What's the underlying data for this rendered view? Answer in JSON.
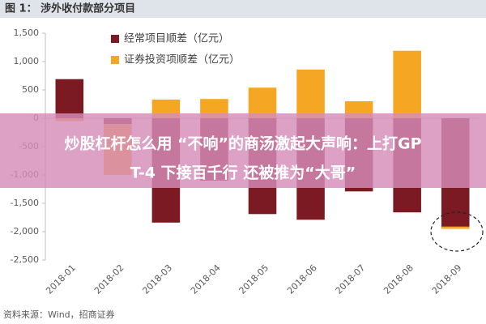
{
  "chart_data": {
    "type": "bar",
    "title": "图 1： 涉外收付款部分项目",
    "categories": [
      "2018-01",
      "2018-02",
      "2018-03",
      "2018-04",
      "2018-05",
      "2018-06",
      "2018-07",
      "2018-08",
      "2018-09"
    ],
    "series": [
      {
        "name": "证券投资项顺差（亿元）",
        "color": "#f5a623",
        "values": [
          -50,
          -1000,
          330,
          340,
          540,
          860,
          300,
          1190,
          -1950
        ]
      },
      {
        "name": "经常项目顺差（亿元）",
        "color": "#7b1a22",
        "values": [
          690,
          -100,
          -1840,
          -1100,
          -1690,
          -1790,
          -1290,
          -1660,
          -1910
        ]
      }
    ],
    "ylim": [
      -2500,
      1500
    ],
    "yticks": [
      {
        "value": -2500,
        "label": "-2,500"
      },
      {
        "value": -2000,
        "label": "-2,000"
      },
      {
        "value": -1500,
        "label": "-1,500"
      },
      {
        "value": -1000,
        "label": "-1,000"
      },
      {
        "value": -500,
        "label": "-500"
      },
      0,
      500,
      {
        "value": 1000,
        "label": "1,000"
      },
      {
        "value": 1500,
        "label": "1,500"
      }
    ],
    "grid": false,
    "source": "资料来源：Wind，招商证券",
    "banner_lines": [
      "炒股杠杆怎么用 “不响”的商汤激起大声响：上打GP",
      "T-4 下接百千行 还被推为“大哥”"
    ]
  }
}
